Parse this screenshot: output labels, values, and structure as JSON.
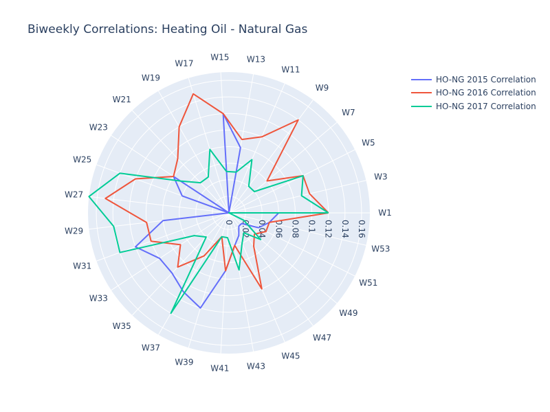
{
  "chart_data": {
    "type": "polar-line",
    "title": "Biweekly Correlations: Heating Oil - Natural Gas",
    "theta_categories": [
      "W1",
      "W3",
      "W5",
      "W7",
      "W9",
      "W11",
      "W13",
      "W15",
      "W17",
      "W19",
      "W21",
      "W23",
      "W25",
      "W27",
      "W29",
      "W31",
      "W33",
      "W35",
      "W37",
      "W39",
      "W41",
      "W43",
      "W45",
      "W47",
      "W49",
      "W51",
      "W53"
    ],
    "radial_ticks": [
      0,
      0.02,
      0.04,
      0.06,
      0.08,
      0.1,
      0.12,
      0.14,
      0.16
    ],
    "radial_range": [
      0,
      0.17
    ],
    "grid": true,
    "legend_position": "top-right",
    "series": [
      {
        "name": "HO-NG 2015 Correlation",
        "color": "#636efa",
        "values": [
          0.06,
          0.0,
          0.0,
          0.0,
          0.0,
          0.0,
          0.08,
          0.12,
          0.0,
          0.0,
          0.0,
          0.08,
          0.06,
          0.0,
          0.08,
          0.12,
          0.1,
          0.1,
          0.11,
          0.12,
          0.07,
          0.04,
          0.03,
          0.02,
          0.02,
          0.04,
          0.05
        ]
      },
      {
        "name": "HO-NG 2016 Correlation",
        "color": "#ef553b",
        "values": [
          0.12,
          0.1,
          0.1,
          0.06,
          0.14,
          0.1,
          0.09,
          0.12,
          0.15,
          0.12,
          0.09,
          0.08,
          0.12,
          0.15,
          0.1,
          0.1,
          0.07,
          0.09,
          0.06,
          0.03,
          0.07,
          0.04,
          0.1,
          0.05,
          0.04,
          0.05,
          0.05
        ]
      },
      {
        "name": "HO-NG 2017 Correlation",
        "color": "#00cc96",
        "values": [
          0.12,
          0.09,
          0.1,
          0.04,
          0.04,
          0.07,
          0.05,
          0.05,
          0.08,
          0.05,
          0.05,
          0.07,
          0.14,
          0.17,
          0.14,
          0.14,
          0.05,
          0.04,
          0.14,
          0.03,
          0.03,
          0.07,
          0.04,
          0.03,
          0.05,
          0.02,
          0.0
        ]
      }
    ]
  }
}
